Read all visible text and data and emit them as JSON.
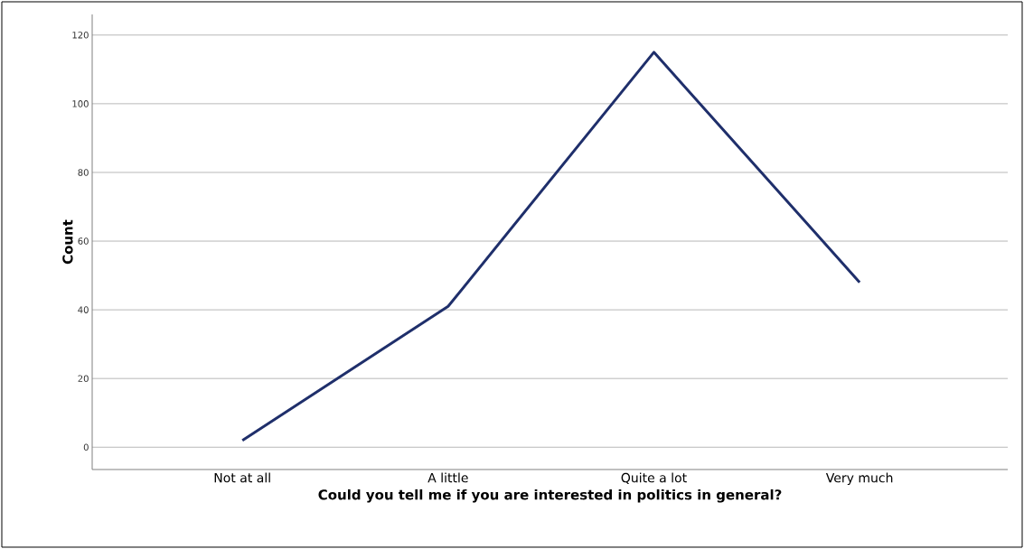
{
  "chart_data": {
    "type": "line",
    "categories": [
      "Not at all",
      "A little",
      "Quite a lot",
      "Very much"
    ],
    "values": [
      2,
      41,
      115,
      48
    ],
    "color": "#1f2f6b",
    "xlabel": "Could you tell me if you are interested in politics in general?",
    "ylabel": "Count",
    "ylim": [
      -6.5,
      126
    ],
    "yticks": [
      0,
      20,
      40,
      60,
      80,
      100,
      120
    ],
    "grid": "y"
  }
}
